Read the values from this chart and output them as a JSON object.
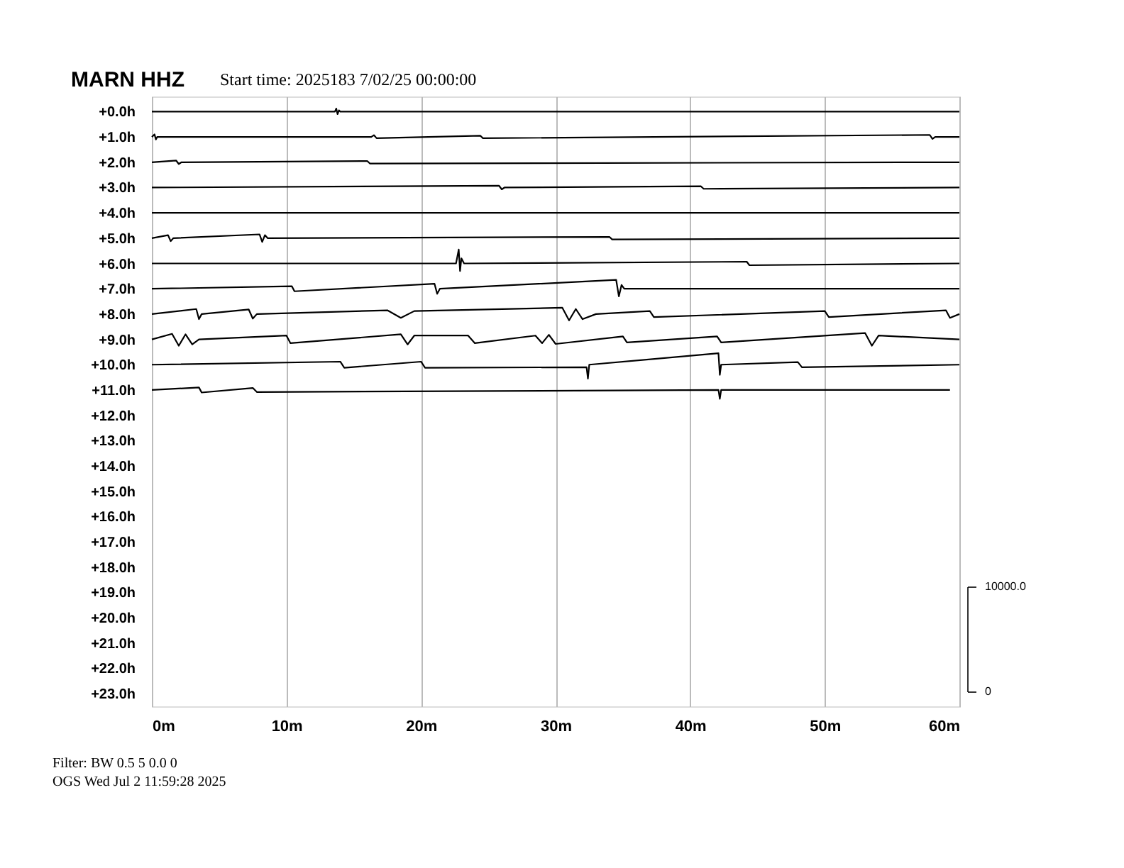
{
  "chart_data": {
    "type": "line",
    "title": "MARN HHZ",
    "subtitle": "Start time: 2025183  7/02/25 00:00:00",
    "annotations": [
      "Filter: BW 0.5 5 0.0 0",
      "OGS   Wed Jul  2 11:59:28 2025",
      "10000.0",
      "0"
    ],
    "xlim": [
      0,
      60
    ],
    "xticks": [
      {
        "value": 0,
        "label": "0m"
      },
      {
        "value": 10,
        "label": "10m"
      },
      {
        "value": 20,
        "label": "20m"
      },
      {
        "value": 30,
        "label": "30m"
      },
      {
        "value": 40,
        "label": "40m"
      },
      {
        "value": 50,
        "label": "50m"
      },
      {
        "value": 60,
        "label": "60m"
      }
    ],
    "ylim": [
      23.5,
      -0.6
    ],
    "yticks": [
      {
        "value": 0,
        "label": "+0.0h"
      },
      {
        "value": 1,
        "label": "+1.0h"
      },
      {
        "value": 2,
        "label": "+2.0h"
      },
      {
        "value": 3,
        "label": "+3.0h"
      },
      {
        "value": 4,
        "label": "+4.0h"
      },
      {
        "value": 5,
        "label": "+5.0h"
      },
      {
        "value": 6,
        "label": "+6.0h"
      },
      {
        "value": 7,
        "label": "+7.0h"
      },
      {
        "value": 8,
        "label": "+8.0h"
      },
      {
        "value": 9,
        "label": "+9.0h"
      },
      {
        "value": 10,
        "label": "+10.0h"
      },
      {
        "value": 11,
        "label": "+11.0h"
      },
      {
        "value": 12,
        "label": "+12.0h"
      },
      {
        "value": 13,
        "label": "+13.0h"
      },
      {
        "value": 14,
        "label": "+14.0h"
      },
      {
        "value": 15,
        "label": "+15.0h"
      },
      {
        "value": 16,
        "label": "+16.0h"
      },
      {
        "value": 17,
        "label": "+17.0h"
      },
      {
        "value": 18,
        "label": "+18.0h"
      },
      {
        "value": 19,
        "label": "+19.0h"
      },
      {
        "value": 20,
        "label": "+20.0h"
      },
      {
        "value": 21,
        "label": "+21.0h"
      },
      {
        "value": 22,
        "label": "+22.0h"
      },
      {
        "value": 23,
        "label": "+23.0h"
      }
    ],
    "grid": "x",
    "legend": false,
    "line_style": "solid",
    "marker": "none",
    "series": [
      {
        "color": "#000000",
        "x": [
          0,
          13.6,
          13.7,
          13.8,
          13.9,
          14.0,
          30,
          45,
          60
        ],
        "values": [
          0,
          0,
          -0.12,
          0.1,
          -0.05,
          0,
          0,
          0,
          0
        ]
      },
      {
        "color": "#000000",
        "x": [
          0,
          0.2,
          0.3,
          0.4,
          16.3,
          16.5,
          16.7,
          24.4,
          24.6,
          57.8,
          58,
          58.2,
          60
        ],
        "values": [
          1,
          0.9,
          1.1,
          1,
          1,
          0.93,
          1.05,
          0.95,
          1.05,
          0.92,
          1.08,
          1,
          1
        ]
      },
      {
        "color": "#000000",
        "x": [
          0,
          1.8,
          2,
          2.2,
          16,
          16.2,
          60
        ],
        "values": [
          2,
          1.93,
          2.07,
          2,
          1.95,
          2.05,
          2
        ]
      },
      {
        "color": "#000000",
        "x": [
          0,
          25.8,
          26,
          26.2,
          40.8,
          41,
          60
        ],
        "values": [
          3,
          2.93,
          3.07,
          3,
          2.95,
          3.05,
          3
        ]
      },
      {
        "color": "#000000",
        "x": [
          0,
          24,
          60
        ],
        "values": [
          4,
          4,
          4
        ]
      },
      {
        "color": "#000000",
        "x": [
          0,
          1.2,
          1.4,
          1.6,
          8,
          8.2,
          8.4,
          8.6,
          34,
          34.2,
          60
        ],
        "values": [
          5,
          4.88,
          5.12,
          5,
          4.85,
          5.15,
          4.88,
          5,
          4.95,
          5.05,
          5
        ]
      },
      {
        "color": "#000000",
        "x": [
          0,
          22.6,
          22.8,
          22.9,
          23,
          23.2,
          44.2,
          44.4,
          60
        ],
        "values": [
          6,
          6,
          5.45,
          6.3,
          5.8,
          6,
          5.93,
          6.07,
          6
        ]
      },
      {
        "color": "#000000",
        "x": [
          0,
          10.4,
          10.6,
          21,
          21.2,
          21.4,
          34.5,
          34.7,
          34.9,
          35.1,
          60
        ],
        "values": [
          7,
          6.9,
          7.1,
          6.8,
          7.2,
          7,
          6.65,
          7.3,
          6.85,
          7,
          7
        ]
      },
      {
        "color": "#000000",
        "x": [
          0,
          3.3,
          3.5,
          3.7,
          7.2,
          7.5,
          7.8,
          17.5,
          18.5,
          19.5,
          30.5,
          31,
          31.5,
          32,
          33,
          37,
          37.3,
          50,
          50.3,
          59,
          59.3,
          60
        ],
        "values": [
          8,
          7.8,
          8.2,
          8,
          7.82,
          8.18,
          8,
          7.85,
          8.15,
          7.88,
          7.75,
          8.25,
          7.8,
          8.2,
          8,
          7.88,
          8.12,
          7.88,
          8.12,
          7.85,
          8.15,
          8
        ]
      },
      {
        "color": "#000000",
        "x": [
          0,
          1.5,
          2,
          2.5,
          3,
          3.5,
          10,
          10.3,
          18.5,
          19,
          19.5,
          23.5,
          24,
          28.5,
          29,
          29.5,
          30,
          35,
          35.3,
          42,
          42.3,
          53,
          53.5,
          54,
          60
        ],
        "values": [
          9,
          8.78,
          9.25,
          8.8,
          9.2,
          9,
          8.85,
          9.15,
          8.8,
          9.2,
          8.85,
          8.85,
          9.15,
          8.85,
          9.15,
          8.82,
          9.18,
          8.88,
          9.12,
          8.88,
          9.12,
          8.75,
          9.25,
          8.85,
          9
        ]
      },
      {
        "color": "#000000",
        "x": [
          0,
          14,
          14.3,
          20,
          20.3,
          32.3,
          32.4,
          32.5,
          42.1,
          42.2,
          42.3,
          48,
          48.3,
          60
        ],
        "values": [
          10,
          9.88,
          10.12,
          9.88,
          10.12,
          10.1,
          10.55,
          10,
          9.55,
          10.4,
          10,
          9.9,
          10.1,
          10
        ]
      },
      {
        "color": "#000000",
        "x": [
          0,
          3.5,
          3.7,
          7.5,
          7.8,
          42.1,
          42.2,
          42.3,
          59.3
        ],
        "values": [
          11,
          10.9,
          11.1,
          10.92,
          11.08,
          11,
          11.35,
          11,
          11
        ]
      }
    ]
  }
}
